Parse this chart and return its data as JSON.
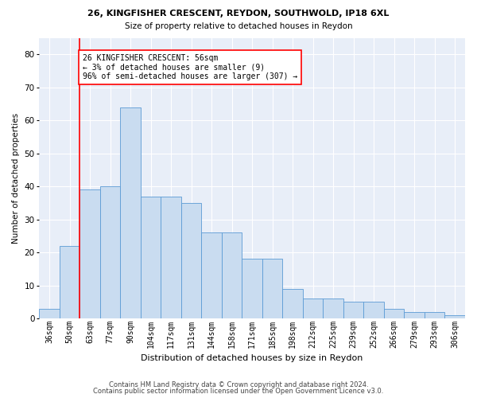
{
  "title1": "26, KINGFISHER CRESCENT, REYDON, SOUTHWOLD, IP18 6XL",
  "title2": "Size of property relative to detached houses in Reydon",
  "xlabel": "Distribution of detached houses by size in Reydon",
  "ylabel": "Number of detached properties",
  "categories": [
    "36sqm",
    "50sqm",
    "63sqm",
    "77sqm",
    "90sqm",
    "104sqm",
    "117sqm",
    "131sqm",
    "144sqm",
    "158sqm",
    "171sqm",
    "185sqm",
    "198sqm",
    "212sqm",
    "225sqm",
    "239sqm",
    "252sqm",
    "266sqm",
    "279sqm",
    "293sqm",
    "306sqm"
  ],
  "values": [
    3,
    22,
    39,
    40,
    64,
    37,
    37,
    35,
    26,
    26,
    18,
    18,
    9,
    6,
    6,
    5,
    5,
    3,
    2,
    2,
    1
  ],
  "bar_color": "#c9dcf0",
  "bar_edge_color": "#5b9bd5",
  "red_line_color": "red",
  "annotation_text": "26 KINGFISHER CRESCENT: 56sqm\n← 3% of detached houses are smaller (9)\n96% of semi-detached houses are larger (307) →",
  "annotation_box_color": "white",
  "annotation_box_edge_color": "red",
  "ylim": [
    0,
    85
  ],
  "yticks": [
    0,
    10,
    20,
    30,
    40,
    50,
    60,
    70,
    80
  ],
  "footer1": "Contains HM Land Registry data © Crown copyright and database right 2024.",
  "footer2": "Contains public sector information licensed under the Open Government Licence v3.0.",
  "bg_color": "#e8eef8",
  "grid_color": "white"
}
